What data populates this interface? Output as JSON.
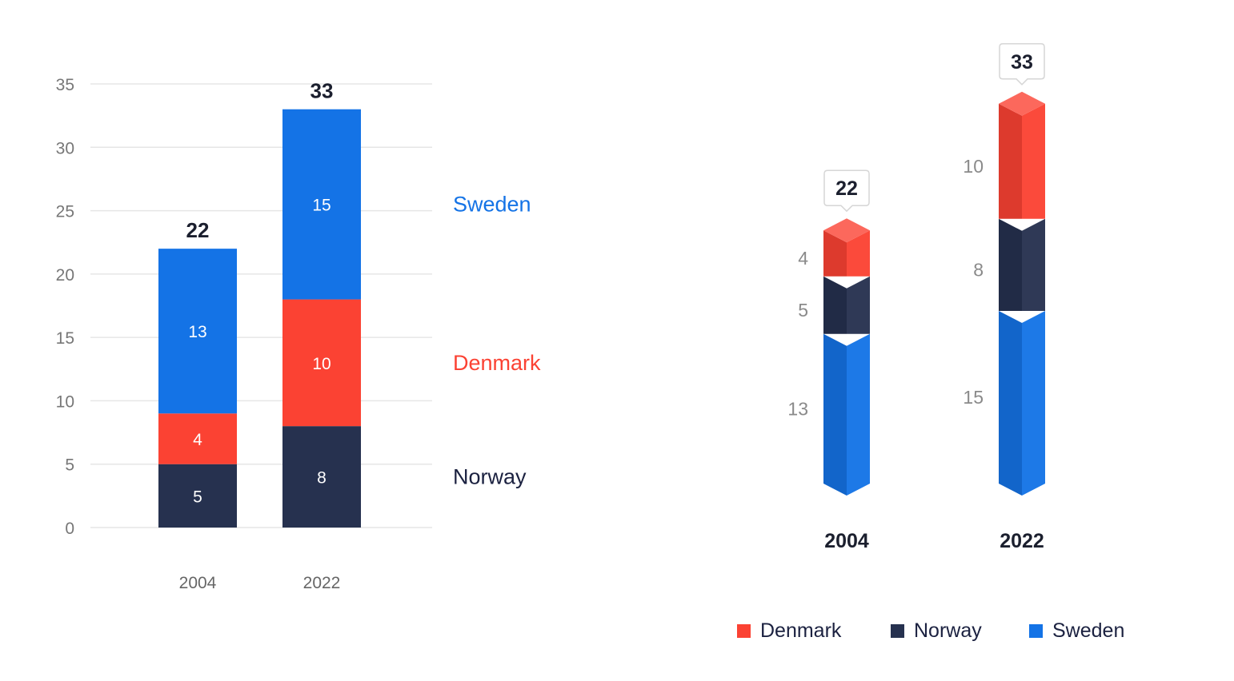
{
  "chart_data": [
    {
      "type": "bar",
      "stacked": true,
      "categories": [
        "2004",
        "2022"
      ],
      "series": [
        {
          "name": "Norway",
          "values": [
            5,
            8
          ],
          "color": "#26314f"
        },
        {
          "name": "Denmark",
          "values": [
            4,
            10
          ],
          "color": "#fb4233"
        },
        {
          "name": "Sweden",
          "values": [
            13,
            15
          ],
          "color": "#1473e6"
        }
      ],
      "totals": [
        22,
        33
      ],
      "ylim": [
        0,
        35
      ],
      "yticks": [
        0,
        5,
        10,
        15,
        20,
        25,
        30,
        35
      ],
      "grid": true,
      "legend": "right, aligned with segments"
    },
    {
      "type": "bar",
      "stacked": true,
      "style": "3d",
      "categories": [
        "2004",
        "2022"
      ],
      "series": [
        {
          "name": "Sweden",
          "values": [
            13,
            15
          ],
          "color": "#1473e6"
        },
        {
          "name": "Norway",
          "values": [
            5,
            8
          ],
          "color": "#26314f"
        },
        {
          "name": "Denmark",
          "values": [
            4,
            10
          ],
          "color": "#fb4233"
        }
      ],
      "totals": [
        22,
        33
      ],
      "legend_order": [
        "Denmark",
        "Norway",
        "Sweden"
      ],
      "legend": "bottom"
    }
  ]
}
